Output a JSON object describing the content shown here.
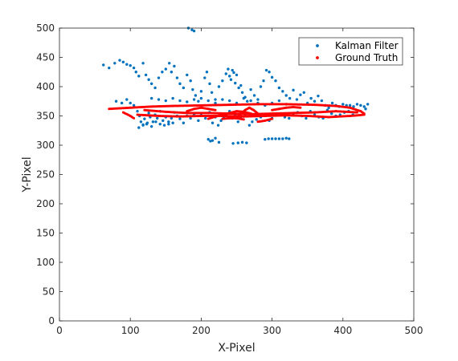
{
  "chart_data": {
    "type": "scatter",
    "title": "",
    "xlabel": "X-Pixel",
    "ylabel": "Y-Pixel",
    "xlim": [
      0,
      500
    ],
    "ylim": [
      0,
      500
    ],
    "xticks": [
      0,
      100,
      200,
      300,
      400,
      500
    ],
    "yticks": [
      0,
      50,
      100,
      150,
      200,
      250,
      300,
      350,
      400,
      450,
      500
    ],
    "grid": false,
    "box": true,
    "legend_position": "top-right",
    "series": [
      {
        "name": "Kalman Filter",
        "color": "#0072BD",
        "marker": "dot",
        "points": [
          [
            62,
            437
          ],
          [
            70,
            432
          ],
          [
            78,
            440
          ],
          [
            85,
            445
          ],
          [
            90,
            442
          ],
          [
            95,
            438
          ],
          [
            100,
            436
          ],
          [
            105,
            432
          ],
          [
            108,
            425
          ],
          [
            112,
            418
          ],
          [
            118,
            440
          ],
          [
            122,
            420
          ],
          [
            126,
            412
          ],
          [
            130,
            405
          ],
          [
            135,
            398
          ],
          [
            140,
            415
          ],
          [
            145,
            425
          ],
          [
            150,
            430
          ],
          [
            155,
            440
          ],
          [
            158,
            425
          ],
          [
            162,
            435
          ],
          [
            166,
            415
          ],
          [
            170,
            405
          ],
          [
            175,
            398
          ],
          [
            180,
            420
          ],
          [
            185,
            410
          ],
          [
            188,
            395
          ],
          [
            192,
            385
          ],
          [
            196,
            375
          ],
          [
            200,
            392
          ],
          [
            205,
            415
          ],
          [
            208,
            425
          ],
          [
            212,
            405
          ],
          [
            215,
            390
          ],
          [
            220,
            378
          ],
          [
            225,
            400
          ],
          [
            230,
            410
          ],
          [
            235,
            422
          ],
          [
            238,
            430
          ],
          [
            240,
            418
          ],
          [
            242,
            412
          ],
          [
            244,
            428
          ],
          [
            246,
            424
          ],
          [
            248,
            406
          ],
          [
            250,
            420
          ],
          [
            253,
            398
          ],
          [
            256,
            402
          ],
          [
            258,
            390
          ],
          [
            262,
            382
          ],
          [
            265,
            375
          ],
          [
            270,
            395
          ],
          [
            275,
            385
          ],
          [
            280,
            378
          ],
          [
            284,
            400
          ],
          [
            288,
            410
          ],
          [
            292,
            428
          ],
          [
            296,
            425
          ],
          [
            300,
            416
          ],
          [
            305,
            410
          ],
          [
            310,
            398
          ],
          [
            315,
            392
          ],
          [
            320,
            385
          ],
          [
            325,
            380
          ],
          [
            330,
            394
          ],
          [
            335,
            378
          ],
          [
            340,
            386
          ],
          [
            345,
            390
          ],
          [
            350,
            372
          ],
          [
            355,
            380
          ],
          [
            360,
            375
          ],
          [
            365,
            384
          ],
          [
            370,
            376
          ],
          [
            375,
            368
          ],
          [
            380,
            364
          ],
          [
            385,
            372
          ],
          [
            390,
            368
          ],
          [
            395,
            366
          ],
          [
            400,
            370
          ],
          [
            405,
            368
          ],
          [
            410,
            368
          ],
          [
            415,
            366
          ],
          [
            420,
            370
          ],
          [
            425,
            368
          ],
          [
            430,
            366
          ],
          [
            432,
            362
          ],
          [
            435,
            370
          ],
          [
            80,
            375
          ],
          [
            88,
            372
          ],
          [
            95,
            378
          ],
          [
            100,
            372
          ],
          [
            105,
            368
          ],
          [
            110,
            358
          ],
          [
            113,
            350
          ],
          [
            115,
            340
          ],
          [
            118,
            335
          ],
          [
            120,
            345
          ],
          [
            123,
            336
          ],
          [
            126,
            355
          ],
          [
            128,
            348
          ],
          [
            132,
            340
          ],
          [
            135,
            352
          ],
          [
            138,
            346
          ],
          [
            142,
            358
          ],
          [
            146,
            342
          ],
          [
            150,
            348
          ],
          [
            154,
            336
          ],
          [
            158,
            346
          ],
          [
            162,
            356
          ],
          [
            166,
            350
          ],
          [
            170,
            345
          ],
          [
            175,
            338
          ],
          [
            180,
            350
          ],
          [
            185,
            346
          ],
          [
            190,
            352
          ],
          [
            196,
            342
          ],
          [
            200,
            354
          ],
          [
            206,
            346
          ],
          [
            212,
            356
          ],
          [
            216,
            338
          ],
          [
            220,
            348
          ],
          [
            224,
            334
          ],
          [
            228,
            342
          ],
          [
            232,
            348
          ],
          [
            236,
            350
          ],
          [
            240,
            358
          ],
          [
            244,
            346
          ],
          [
            248,
            352
          ],
          [
            252,
            340
          ],
          [
            256,
            346
          ],
          [
            262,
            350
          ],
          [
            268,
            334
          ],
          [
            272,
            340
          ],
          [
            278,
            344
          ],
          [
            284,
            348
          ],
          [
            290,
            352
          ],
          [
            296,
            342
          ],
          [
            300,
            346
          ],
          [
            306,
            352
          ],
          [
            312,
            354
          ],
          [
            318,
            348
          ],
          [
            324,
            346
          ],
          [
            330,
            352
          ],
          [
            336,
            356
          ],
          [
            342,
            350
          ],
          [
            348,
            346
          ],
          [
            354,
            358
          ],
          [
            360,
            352
          ],
          [
            366,
            348
          ],
          [
            372,
            346
          ],
          [
            378,
            360
          ],
          [
            384,
            354
          ],
          [
            390,
            350
          ],
          [
            396,
            352
          ],
          [
            402,
            356
          ],
          [
            408,
            358
          ],
          [
            414,
            352
          ],
          [
            130,
            380
          ],
          [
            140,
            378
          ],
          [
            150,
            376
          ],
          [
            160,
            380
          ],
          [
            170,
            376
          ],
          [
            180,
            374
          ],
          [
            190,
            378
          ],
          [
            200,
            380
          ],
          [
            210,
            376
          ],
          [
            220,
            372
          ],
          [
            230,
            378
          ],
          [
            240,
            376
          ],
          [
            250,
            372
          ],
          [
            260,
            380
          ],
          [
            270,
            376
          ],
          [
            280,
            372
          ],
          [
            290,
            368
          ],
          [
            300,
            372
          ],
          [
            310,
            376
          ],
          [
            320,
            370
          ],
          [
            112,
            330
          ],
          [
            118,
            334
          ],
          [
            124,
            338
          ],
          [
            130,
            332
          ],
          [
            136,
            340
          ],
          [
            142,
            336
          ],
          [
            148,
            334
          ],
          [
            154,
            340
          ],
          [
            160,
            338
          ],
          [
            210,
            310
          ],
          [
            213,
            307
          ],
          [
            216,
            308
          ],
          [
            220,
            312
          ],
          [
            225,
            305
          ],
          [
            245,
            303
          ],
          [
            252,
            304
          ],
          [
            258,
            305
          ],
          [
            264,
            304
          ],
          [
            290,
            310
          ],
          [
            295,
            311
          ],
          [
            300,
            311
          ],
          [
            305,
            311
          ],
          [
            310,
            311
          ],
          [
            315,
            311
          ],
          [
            320,
            312
          ],
          [
            324,
            311
          ],
          [
            160,
            505
          ],
          [
            165,
            505
          ],
          [
            170,
            503
          ],
          [
            176,
            502
          ],
          [
            182,
            500
          ],
          [
            187,
            497
          ],
          [
            190,
            495
          ]
        ]
      },
      {
        "name": "Ground Truth",
        "color": "#FF0000",
        "marker": "dot",
        "lines": [
          [
            [
              70,
              362
            ],
            [
              100,
              364
            ],
            [
              130,
              366
            ],
            [
              160,
              367
            ],
            [
              200,
              368
            ],
            [
              240,
              369
            ],
            [
              280,
              370
            ],
            [
              320,
              370
            ],
            [
              360,
              369
            ],
            [
              390,
              367
            ],
            [
              410,
              364
            ],
            [
              425,
              358
            ],
            [
              430,
              354
            ]
          ],
          [
            [
              120,
              360
            ],
            [
              150,
              357
            ],
            [
              180,
              355
            ],
            [
              210,
              355
            ],
            [
              240,
              354
            ],
            [
              270,
              353
            ],
            [
              300,
              354
            ],
            [
              330,
              355
            ],
            [
              360,
              356
            ],
            [
              390,
              358
            ],
            [
              420,
              356
            ]
          ],
          [
            [
              110,
              352
            ],
            [
              140,
              350
            ],
            [
              170,
              349
            ],
            [
              200,
              350
            ],
            [
              230,
              350
            ],
            [
              260,
              349
            ],
            [
              290,
              350
            ],
            [
              320,
              351
            ],
            [
              350,
              350
            ],
            [
              380,
              348
            ],
            [
              410,
              350
            ],
            [
              430,
              352
            ]
          ],
          [
            [
              90,
              356
            ],
            [
              100,
              350
            ],
            [
              105,
              346
            ]
          ],
          [
            [
              210,
              345
            ],
            [
              220,
              349
            ],
            [
              230,
              352
            ],
            [
              240,
              355
            ],
            [
              250,
              358
            ],
            [
              260,
              357
            ],
            [
              270,
              354
            ],
            [
              280,
              350
            ]
          ],
          [
            [
              250,
              348
            ],
            [
              256,
              353
            ],
            [
              262,
              360
            ],
            [
              268,
              364
            ],
            [
              274,
              360
            ],
            [
              280,
              354
            ]
          ],
          [
            [
              180,
              358
            ],
            [
              190,
              362
            ],
            [
              200,
              364
            ],
            [
              210,
              362
            ],
            [
              220,
              360
            ]
          ],
          [
            [
              300,
              360
            ],
            [
              310,
              362
            ],
            [
              320,
              364
            ],
            [
              330,
              365
            ],
            [
              340,
              364
            ]
          ],
          [
            [
              230,
              345
            ],
            [
              240,
              346
            ],
            [
              250,
              346
            ],
            [
              260,
              344
            ]
          ],
          [
            [
              280,
              340
            ],
            [
              290,
              342
            ],
            [
              300,
              345
            ]
          ]
        ]
      }
    ]
  }
}
